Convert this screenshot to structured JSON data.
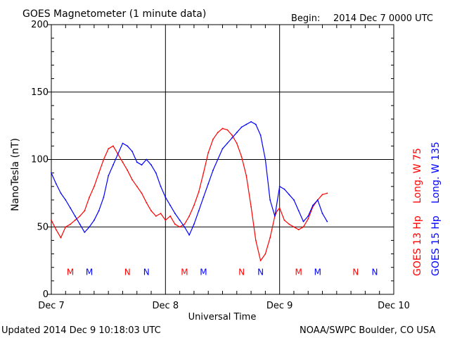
{
  "header": {
    "title": "GOES Magnetometer (1 minute data)",
    "begin_label": "Begin:",
    "begin_value": "2014 Dec 7 0000 UTC"
  },
  "footer": {
    "updated": "Updated 2014 Dec  9 10:18:03 UTC",
    "credit": "NOAA/SWPC Boulder, CO USA"
  },
  "chart_data": {
    "type": "line",
    "ylabel": "NanoTesla (nT)",
    "xlabel": "Universal Time",
    "ylim": [
      0,
      200
    ],
    "xlim": [
      0,
      72
    ],
    "x_unit": "hours since 2014 Dec 7 0000 UTC",
    "y_ticks": [
      0,
      50,
      100,
      150,
      200
    ],
    "x_ticks": [
      {
        "value": 0,
        "label": "Dec 7"
      },
      {
        "value": 24,
        "label": "Dec 8"
      },
      {
        "value": 48,
        "label": "Dec 9"
      },
      {
        "value": 72,
        "label": "Dec 10"
      }
    ],
    "grid": true,
    "series": [
      {
        "name": "GOES 13 Hp",
        "longitude": "Long. W 75",
        "color": "#ff0000",
        "x": [
          0,
          1,
          2,
          3,
          4,
          5,
          6,
          7,
          8,
          9,
          10,
          11,
          12,
          13,
          14,
          15,
          16,
          17,
          18,
          19,
          20,
          21,
          22,
          23,
          24,
          25,
          26,
          27,
          28,
          29,
          30,
          31,
          32,
          33,
          34,
          35,
          36,
          37,
          38,
          39,
          40,
          41,
          42,
          43,
          44,
          45,
          46,
          47,
          47.5,
          48,
          49,
          50,
          51,
          52,
          53,
          54,
          55,
          56,
          57,
          58
        ],
        "values": [
          55,
          48,
          42,
          50,
          52,
          55,
          58,
          62,
          72,
          80,
          90,
          100,
          108,
          110,
          104,
          98,
          92,
          85,
          80,
          75,
          68,
          62,
          58,
          60,
          55,
          58,
          52,
          50,
          52,
          58,
          66,
          76,
          90,
          105,
          115,
          120,
          123,
          122,
          118,
          112,
          102,
          88,
          65,
          40,
          25,
          30,
          42,
          58,
          62,
          64,
          55,
          52,
          50,
          48,
          50,
          56,
          65,
          70,
          74,
          75
        ]
      },
      {
        "name": "GOES 15 Hp",
        "longitude": "Long. W 135",
        "color": "#0000ff",
        "x": [
          0,
          1,
          2,
          3,
          4,
          5,
          6,
          7,
          8,
          9,
          10,
          11,
          12,
          13,
          14,
          15,
          16,
          17,
          18,
          19,
          20,
          21,
          22,
          23,
          24,
          25,
          26,
          27,
          28,
          29,
          30,
          31,
          32,
          33,
          34,
          35,
          36,
          37,
          38,
          39,
          40,
          41,
          42,
          43,
          44,
          45,
          46,
          47,
          48,
          49,
          50,
          51,
          52,
          53,
          54,
          55,
          56,
          57,
          58
        ],
        "values": [
          90,
          82,
          75,
          70,
          64,
          58,
          52,
          46,
          50,
          55,
          62,
          72,
          88,
          96,
          104,
          112,
          110,
          106,
          98,
          96,
          100,
          96,
          90,
          80,
          72,
          66,
          60,
          55,
          50,
          44,
          52,
          62,
          72,
          82,
          92,
          100,
          108,
          112,
          116,
          120,
          124,
          126,
          128,
          126,
          118,
          100,
          70,
          58,
          80,
          78,
          74,
          70,
          62,
          54,
          58,
          66,
          70,
          60,
          54
        ]
      }
    ],
    "markers": {
      "row_value": 17,
      "items": [
        {
          "x": 4,
          "label": "M",
          "color": "#ff0000"
        },
        {
          "x": 8,
          "label": "M",
          "color": "#0000ff"
        },
        {
          "x": 16,
          "label": "N",
          "color": "#ff0000"
        },
        {
          "x": 20,
          "label": "N",
          "color": "#0000ff"
        },
        {
          "x": 28,
          "label": "M",
          "color": "#ff0000"
        },
        {
          "x": 32,
          "label": "M",
          "color": "#0000ff"
        },
        {
          "x": 40,
          "label": "N",
          "color": "#ff0000"
        },
        {
          "x": 44,
          "label": "N",
          "color": "#0000ff"
        },
        {
          "x": 52,
          "label": "M",
          "color": "#ff0000"
        },
        {
          "x": 56,
          "label": "M",
          "color": "#0000ff"
        },
        {
          "x": 64,
          "label": "N",
          "color": "#ff0000"
        },
        {
          "x": 68,
          "label": "N",
          "color": "#0000ff"
        }
      ]
    }
  }
}
